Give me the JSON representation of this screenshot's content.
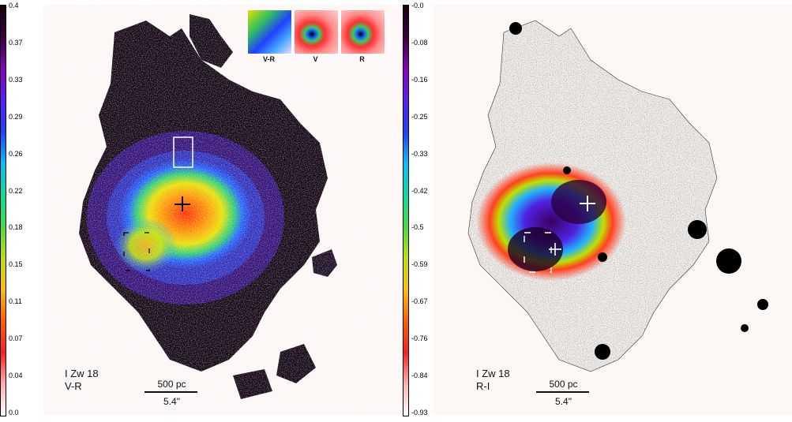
{
  "left_panel": {
    "title": "I Zw 18",
    "band": "V-R",
    "scale_pc": "500 pc",
    "scale_arcsec": "5.4\"",
    "colorbar_ticks": [
      "0.4",
      "0.37",
      "0.33",
      "0.29",
      "0.26",
      "0.22",
      "0.18",
      "0.15",
      "0.11",
      "0.07",
      "0.04",
      "0.0"
    ],
    "insets": [
      "V-R",
      "V",
      "R"
    ]
  },
  "right_panel": {
    "title": "I Zw 18",
    "band": "R-I",
    "scale_pc": "500 pc",
    "scale_arcsec": "5.4\"",
    "colorbar_ticks": [
      "-0.0",
      "-0.08",
      "-0.16",
      "-0.25",
      "-0.33",
      "-0.42",
      "-0.5",
      "-0.59",
      "-0.67",
      "-0.76",
      "-0.84",
      "-0.93"
    ]
  }
}
